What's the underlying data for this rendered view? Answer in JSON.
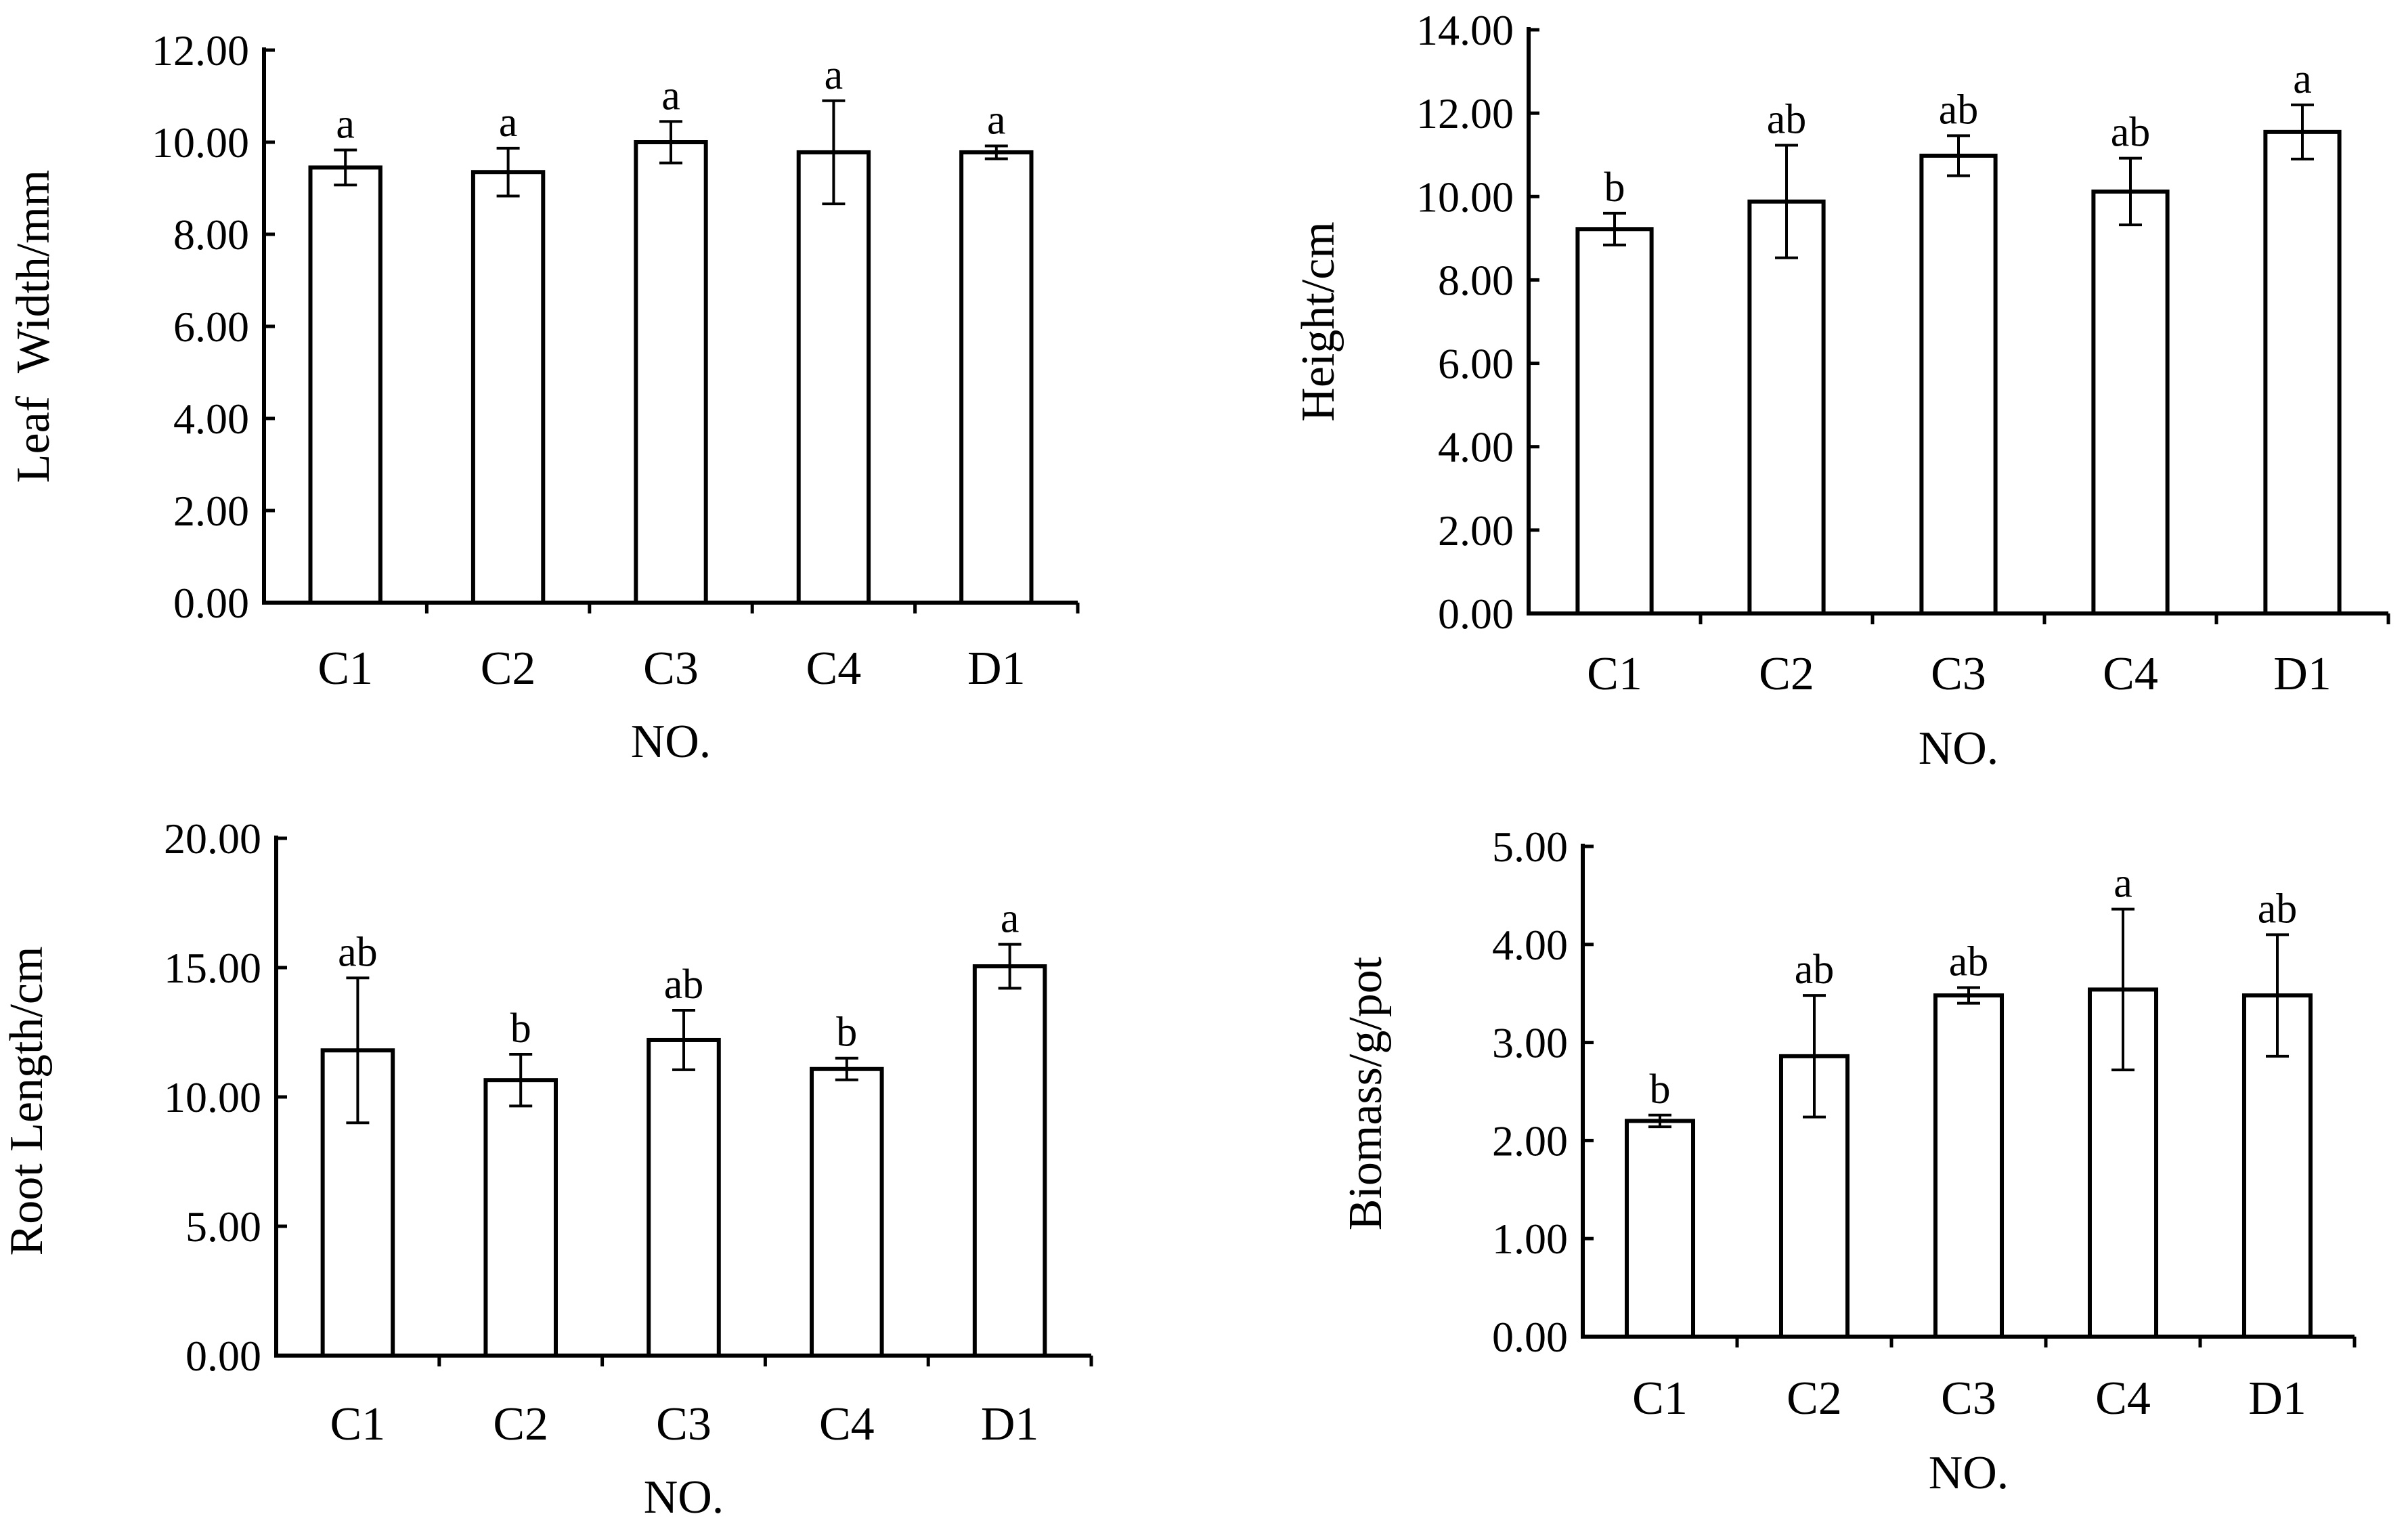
{
  "colors": {
    "axis": "#000000",
    "bar_fill": "#ffffff",
    "bar_stroke": "#000000",
    "background": "#ffffff"
  },
  "chart_data": [
    {
      "type": "bar",
      "title": "",
      "categories": [
        "C1",
        "C2",
        "C3",
        "C4",
        "D1"
      ],
      "values": [
        9.45,
        9.35,
        10.0,
        9.78,
        9.78
      ],
      "errors": [
        0.38,
        0.52,
        0.45,
        1.12,
        0.14
      ],
      "significance": [
        "a",
        "a",
        "a",
        "a",
        "a"
      ],
      "xlabel": "NO.",
      "ylabel": "Leaf  Width/mm",
      "ylim": [
        0,
        12
      ],
      "yticks": [
        0,
        2,
        4,
        6,
        8,
        10,
        12
      ],
      "ytick_labels": [
        "0.00",
        "2.00",
        "4.00",
        "6.00",
        "8.00",
        "10.00",
        "12.00"
      ],
      "grid": false
    },
    {
      "type": "bar",
      "title": "",
      "categories": [
        "C1",
        "C2",
        "C3",
        "C4",
        "D1"
      ],
      "values": [
        9.22,
        9.88,
        10.98,
        10.12,
        11.55
      ],
      "errors": [
        0.38,
        1.35,
        0.48,
        0.8,
        0.65
      ],
      "significance": [
        "b",
        "ab",
        "ab",
        "ab",
        "a"
      ],
      "xlabel": "NO.",
      "ylabel": "Height/cm",
      "ylim": [
        0,
        14
      ],
      "yticks": [
        0,
        2,
        4,
        6,
        8,
        10,
        12,
        14
      ],
      "ytick_labels": [
        "0.00",
        "2.00",
        "4.00",
        "6.00",
        "8.00",
        "10.00",
        "12.00",
        "14.00"
      ],
      "grid": false
    },
    {
      "type": "bar",
      "title": "",
      "categories": [
        "C1",
        "C2",
        "C3",
        "C4",
        "D1"
      ],
      "values": [
        11.8,
        10.65,
        12.2,
        11.08,
        15.05
      ],
      "errors": [
        2.8,
        1.0,
        1.15,
        0.42,
        0.85
      ],
      "significance": [
        "ab",
        "b",
        "ab",
        "b",
        "a"
      ],
      "xlabel": "NO.",
      "ylabel": "Root Length/cm",
      "ylim": [
        0,
        20
      ],
      "yticks": [
        0,
        5,
        10,
        15,
        20
      ],
      "ytick_labels": [
        "0.00",
        "5.00",
        "10.00",
        "15.00",
        "20.00"
      ],
      "grid": false
    },
    {
      "type": "bar",
      "title": "",
      "categories": [
        "C1",
        "C2",
        "C3",
        "C4",
        "D1"
      ],
      "values": [
        2.2,
        2.86,
        3.48,
        3.54,
        3.48
      ],
      "errors": [
        0.06,
        0.62,
        0.08,
        0.82,
        0.62
      ],
      "significance": [
        "b",
        "ab",
        "ab",
        "a",
        "ab"
      ],
      "xlabel": "NO.",
      "ylabel": "Biomass/g/pot",
      "ylim": [
        0,
        5
      ],
      "yticks": [
        0,
        1,
        2,
        3,
        4,
        5
      ],
      "ytick_labels": [
        "0.00",
        "1.00",
        "2.00",
        "3.00",
        "4.00",
        "5.00"
      ],
      "grid": false
    }
  ]
}
